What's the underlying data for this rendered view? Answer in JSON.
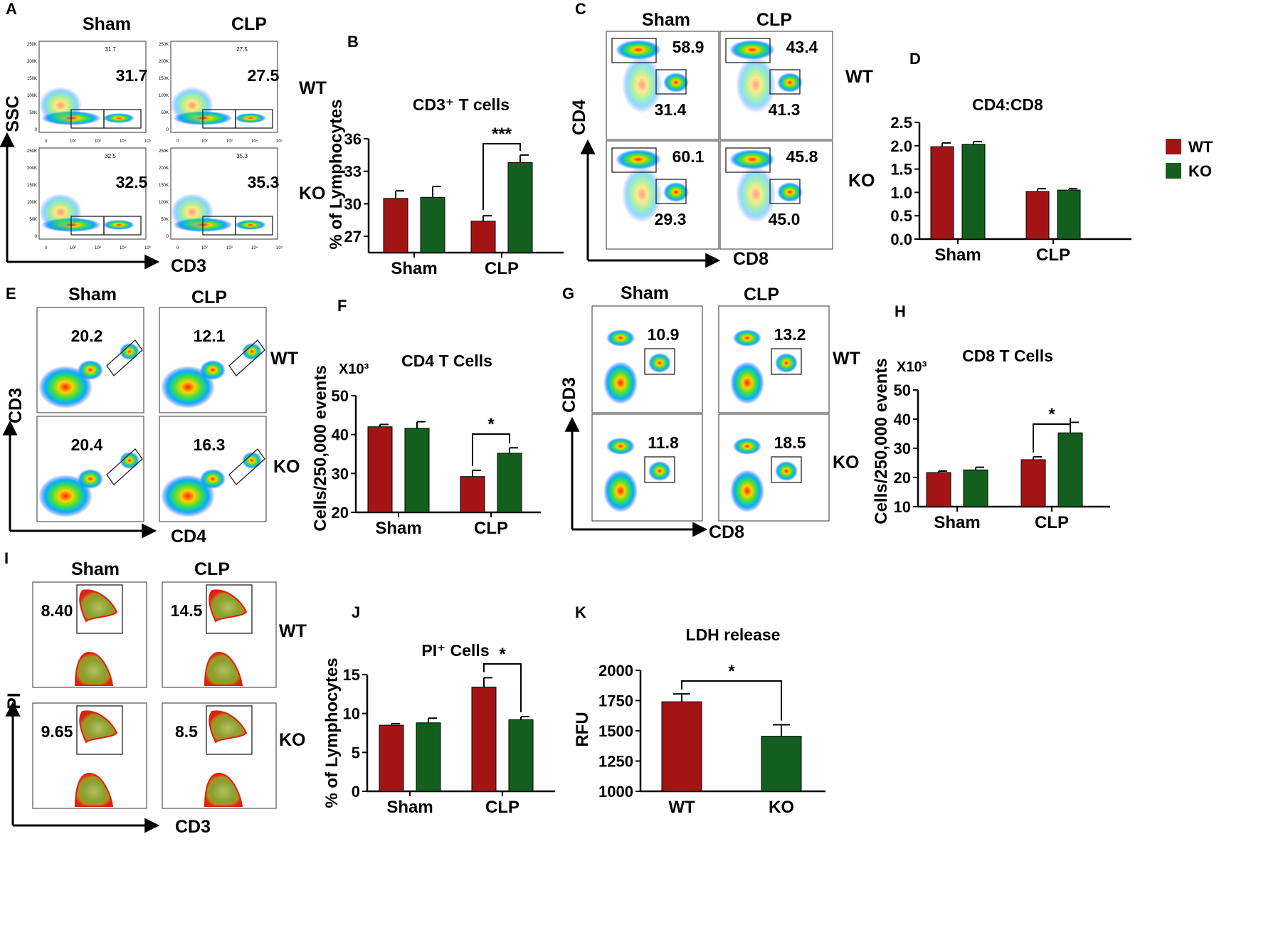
{
  "colors": {
    "wt": "#a31515",
    "ko": "#13601e",
    "gate": "#333333"
  },
  "chart_data": [
    {
      "id": "A",
      "type": "scatter",
      "panel_label": "A",
      "xlabel": "CD3",
      "ylabel": "SSC",
      "col_labels": [
        "Sham",
        "CLP"
      ],
      "row_labels": [
        "WT",
        "KO"
      ],
      "big_values": [
        [
          "31.7",
          "27.5"
        ],
        [
          "32.5",
          "35.3"
        ]
      ],
      "small_values": [
        [
          "31.7",
          "27.5"
        ],
        [
          "32.5",
          "35.3"
        ]
      ],
      "y_ticks": [
        "250K",
        "200K",
        "150K",
        "100K",
        "50K",
        "0"
      ],
      "x_ticks": [
        "0",
        "10²",
        "10³",
        "10⁴",
        "10⁵"
      ]
    },
    {
      "id": "B",
      "type": "bar",
      "panel_label": "B",
      "title": "CD3⁺ T cells",
      "categories": [
        "Sham",
        "CLP"
      ],
      "series": [
        {
          "name": "WT",
          "values": [
            30.5,
            28.4
          ],
          "errors": [
            0.7,
            0.5
          ]
        },
        {
          "name": "KO",
          "values": [
            30.6,
            33.8
          ],
          "errors": [
            1.0,
            0.7
          ]
        }
      ],
      "ylabel": "% of Lymphocytes",
      "ylim": [
        25.5,
        36
      ],
      "yticks": [
        27,
        30,
        33,
        36
      ],
      "annotations": [
        {
          "category": "CLP",
          "text": "***"
        }
      ]
    },
    {
      "id": "C",
      "type": "scatter",
      "panel_label": "C",
      "xlabel": "CD8",
      "ylabel": "CD4",
      "col_labels": [
        "Sham",
        "CLP"
      ],
      "row_labels": [
        "WT",
        "KO"
      ],
      "upper_values": [
        [
          "58.9",
          "43.4"
        ],
        [
          "60.1",
          "45.8"
        ]
      ],
      "lower_values": [
        [
          "31.4",
          "41.3"
        ],
        [
          "29.3",
          "45.0"
        ]
      ]
    },
    {
      "id": "D",
      "type": "bar",
      "panel_label": "D",
      "title": "CD4:CD8",
      "categories": [
        "Sham",
        "CLP"
      ],
      "series": [
        {
          "name": "WT",
          "values": [
            1.98,
            1.02
          ],
          "errors": [
            0.08,
            0.06
          ]
        },
        {
          "name": "KO",
          "values": [
            2.03,
            1.05
          ],
          "errors": [
            0.06,
            0.03
          ]
        }
      ],
      "ylabel": "",
      "ylim": [
        0,
        2.5
      ],
      "yticks": [
        "0.0",
        "0.5",
        "1.0",
        "1.5",
        "2.0",
        "2.5"
      ],
      "legend": [
        "WT",
        "KO"
      ],
      "legend_position": "top-right"
    },
    {
      "id": "E",
      "type": "scatter",
      "panel_label": "E",
      "xlabel": "CD4",
      "ylabel": "CD3",
      "col_labels": [
        "Sham",
        "CLP"
      ],
      "row_labels": [
        "WT",
        "KO"
      ],
      "values": [
        [
          "20.2",
          "12.1"
        ],
        [
          "20.4",
          "16.3"
        ]
      ]
    },
    {
      "id": "F",
      "type": "bar",
      "panel_label": "F",
      "title": "CD4  T Cells",
      "categories": [
        "Sham",
        "CLP"
      ],
      "series": [
        {
          "name": "WT",
          "values": [
            42,
            29.2
          ],
          "errors": [
            0.6,
            1.6
          ]
        },
        {
          "name": "KO",
          "values": [
            41.6,
            35.2
          ],
          "errors": [
            1.7,
            1.4
          ]
        }
      ],
      "ylabel": "Cells/250,000 events",
      "unit_label": "X10³",
      "ylim": [
        20,
        50
      ],
      "yticks": [
        20,
        30,
        40,
        50
      ],
      "annotations": [
        {
          "category": "CLP",
          "text": "*"
        }
      ]
    },
    {
      "id": "G",
      "type": "scatter",
      "panel_label": "G",
      "xlabel": "CD8",
      "ylabel": "CD3",
      "col_labels": [
        "Sham",
        "CLP"
      ],
      "row_labels": [
        "WT",
        "KO"
      ],
      "values": [
        [
          "10.9",
          "13.2"
        ],
        [
          "11.8",
          "18.5"
        ]
      ]
    },
    {
      "id": "H",
      "type": "bar",
      "panel_label": "H",
      "title": "CD8 T Cells",
      "categories": [
        "Sham",
        "CLP"
      ],
      "series": [
        {
          "name": "WT",
          "values": [
            21.7,
            26.1
          ],
          "errors": [
            0.5,
            1.0
          ]
        },
        {
          "name": "KO",
          "values": [
            22.6,
            35.3
          ],
          "errors": [
            0.9,
            3.6
          ]
        }
      ],
      "ylabel": "Cells/250,000 events",
      "unit_label": "X10³",
      "ylim": [
        10,
        50
      ],
      "yticks": [
        10,
        20,
        30,
        40,
        50
      ],
      "annotations": [
        {
          "category": "CLP",
          "text": "*"
        }
      ]
    },
    {
      "id": "I",
      "type": "contour",
      "panel_label": "I",
      "xlabel": "CD3",
      "ylabel": "PI",
      "col_labels": [
        "Sham",
        "CLP"
      ],
      "row_labels": [
        "WT",
        "KO"
      ],
      "values": [
        [
          "8.40",
          "14.5"
        ],
        [
          "9.65",
          "8.5"
        ]
      ]
    },
    {
      "id": "J",
      "type": "bar",
      "panel_label": "J",
      "title": "PI⁺ Cells",
      "categories": [
        "Sham",
        "CLP"
      ],
      "series": [
        {
          "name": "WT",
          "values": [
            8.5,
            13.4
          ],
          "errors": [
            0.2,
            1.2
          ]
        },
        {
          "name": "KO",
          "values": [
            8.8,
            9.2
          ],
          "errors": [
            0.6,
            0.4
          ]
        }
      ],
      "ylabel": "% of Lymphocytes",
      "ylim": [
        0,
        15
      ],
      "yticks": [
        0,
        5,
        10,
        15
      ],
      "annotations": [
        {
          "category": "CLP",
          "text": "*"
        }
      ]
    },
    {
      "id": "K",
      "type": "bar",
      "panel_label": "K",
      "title": "LDH release",
      "categories": [
        "WT",
        "KO"
      ],
      "values": [
        1740,
        1455
      ],
      "errors": [
        65,
        95
      ],
      "ylabel": "RFU",
      "ylim": [
        1000,
        2000
      ],
      "yticks": [
        1000,
        1250,
        1500,
        1750,
        2000
      ],
      "annotations": [
        {
          "text": "*"
        }
      ]
    }
  ]
}
